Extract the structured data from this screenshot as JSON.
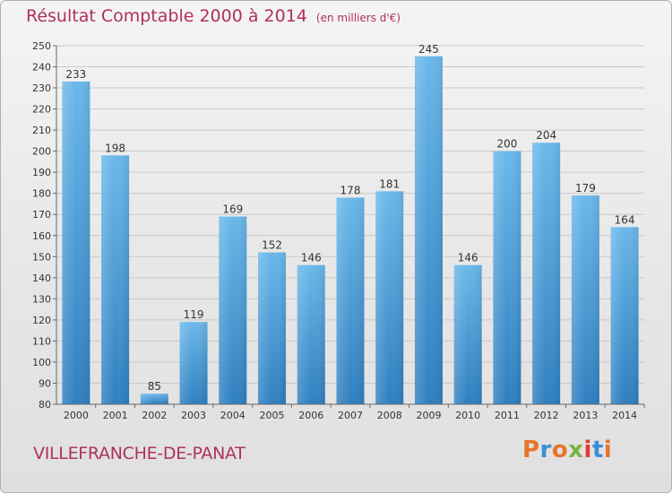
{
  "header": {
    "title": "Résultat Comptable 2000 à 2014",
    "unit": "(en milliers d'€)"
  },
  "footer": {
    "commune": "VILLEFRANCHE-DE-PANAT",
    "logo_text": "Proxiti"
  },
  "colors": {
    "title": "#b03060",
    "bar_top": "#6ab8ea",
    "bar_bottom": "#2f7fc0",
    "logo_letters": [
      "#e8742a",
      "#3b8fd6",
      "#e8742a",
      "#7cb342",
      "#e53935",
      "#3b8fd6",
      "#e8742a"
    ]
  },
  "chart_data": {
    "type": "bar",
    "categories": [
      "2000",
      "2001",
      "2002",
      "2003",
      "2004",
      "2005",
      "2006",
      "2007",
      "2008",
      "2009",
      "2010",
      "2011",
      "2012",
      "2013",
      "2014"
    ],
    "values": [
      233,
      198,
      85,
      119,
      169,
      152,
      146,
      178,
      181,
      245,
      146,
      200,
      204,
      179,
      164
    ],
    "title": "Résultat Comptable 2000 à 2014",
    "ylim": [
      80,
      250
    ],
    "yticks": [
      80,
      90,
      100,
      110,
      120,
      130,
      140,
      150,
      160,
      170,
      180,
      190,
      200,
      210,
      220,
      230,
      240,
      250
    ],
    "grid": true,
    "data_labels": true
  }
}
